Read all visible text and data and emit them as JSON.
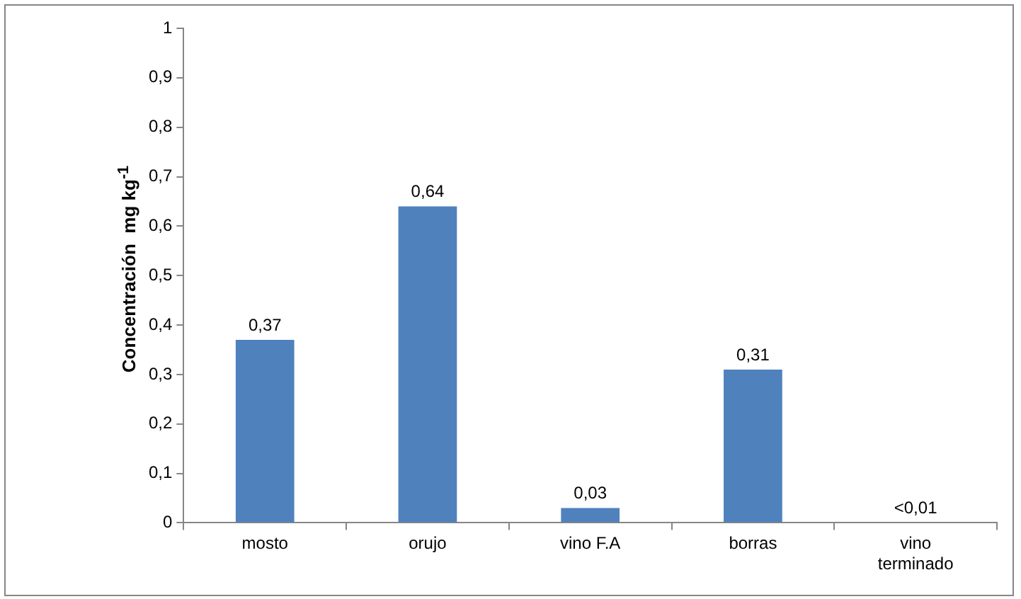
{
  "chart_data": {
    "type": "bar",
    "ylabel": "Concentración  mg kg$^{-1}$",
    "categories": [
      "mosto",
      "orujo",
      "vino F.A",
      "borras",
      "vino terminado"
    ],
    "values": [
      0.37,
      0.64,
      0.03,
      0.31,
      0
    ],
    "value_labels": [
      "0,37",
      "0,64",
      "0,03",
      "0,31",
      "<0,01"
    ],
    "color": "#4f81bd",
    "ylim": [
      0,
      1
    ],
    "yticks": [
      0,
      {
        "value": 0.1,
        "label": "0,1"
      },
      {
        "value": 0.2,
        "label": "0,2"
      },
      {
        "value": 0.3,
        "label": "0,3"
      },
      {
        "value": 0.4,
        "label": "0,4"
      },
      {
        "value": 0.5,
        "label": "0,5"
      },
      {
        "value": 0.6,
        "label": "0,6"
      },
      {
        "value": 0.7,
        "label": "0,7"
      },
      {
        "value": 0.8,
        "label": "0,8"
      },
      {
        "value": 0.9,
        "label": "0,9"
      },
      1
    ],
    "grid": false,
    "legend": false
  }
}
